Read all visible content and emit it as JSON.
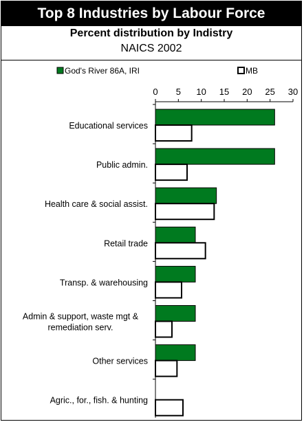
{
  "header": {
    "title": "Top 8 Industries by Labour Force",
    "subtitle": "Percent distribution by Indistry",
    "source": "NAICS 2002"
  },
  "colors": {
    "series_fill": [
      "#007a1f",
      "#ffffff"
    ],
    "stroke": "#000000"
  },
  "chart_data": {
    "type": "bar",
    "orientation": "horizontal",
    "categories": [
      "Educational services",
      "Public admin.",
      "Health care & social assist.",
      "Retail trade",
      "Transp. & warehousing",
      "Admin & support, waste mgt & remediation serv.",
      "Other services",
      "Agric., for., fish. & hunting"
    ],
    "series": [
      {
        "name": "God's River 86A, IRI",
        "values": [
          26.0,
          26.0,
          13.3,
          8.7,
          8.7,
          8.7,
          8.7,
          0
        ]
      },
      {
        "name": "MB",
        "values": [
          7.9,
          6.9,
          12.8,
          10.9,
          5.7,
          3.6,
          4.7,
          6.0
        ]
      }
    ],
    "xlim": [
      0,
      30
    ],
    "xticks": [
      0,
      5,
      10,
      15,
      20,
      25,
      30
    ],
    "axis_position": "top",
    "legend_position": "top",
    "grid": false
  }
}
